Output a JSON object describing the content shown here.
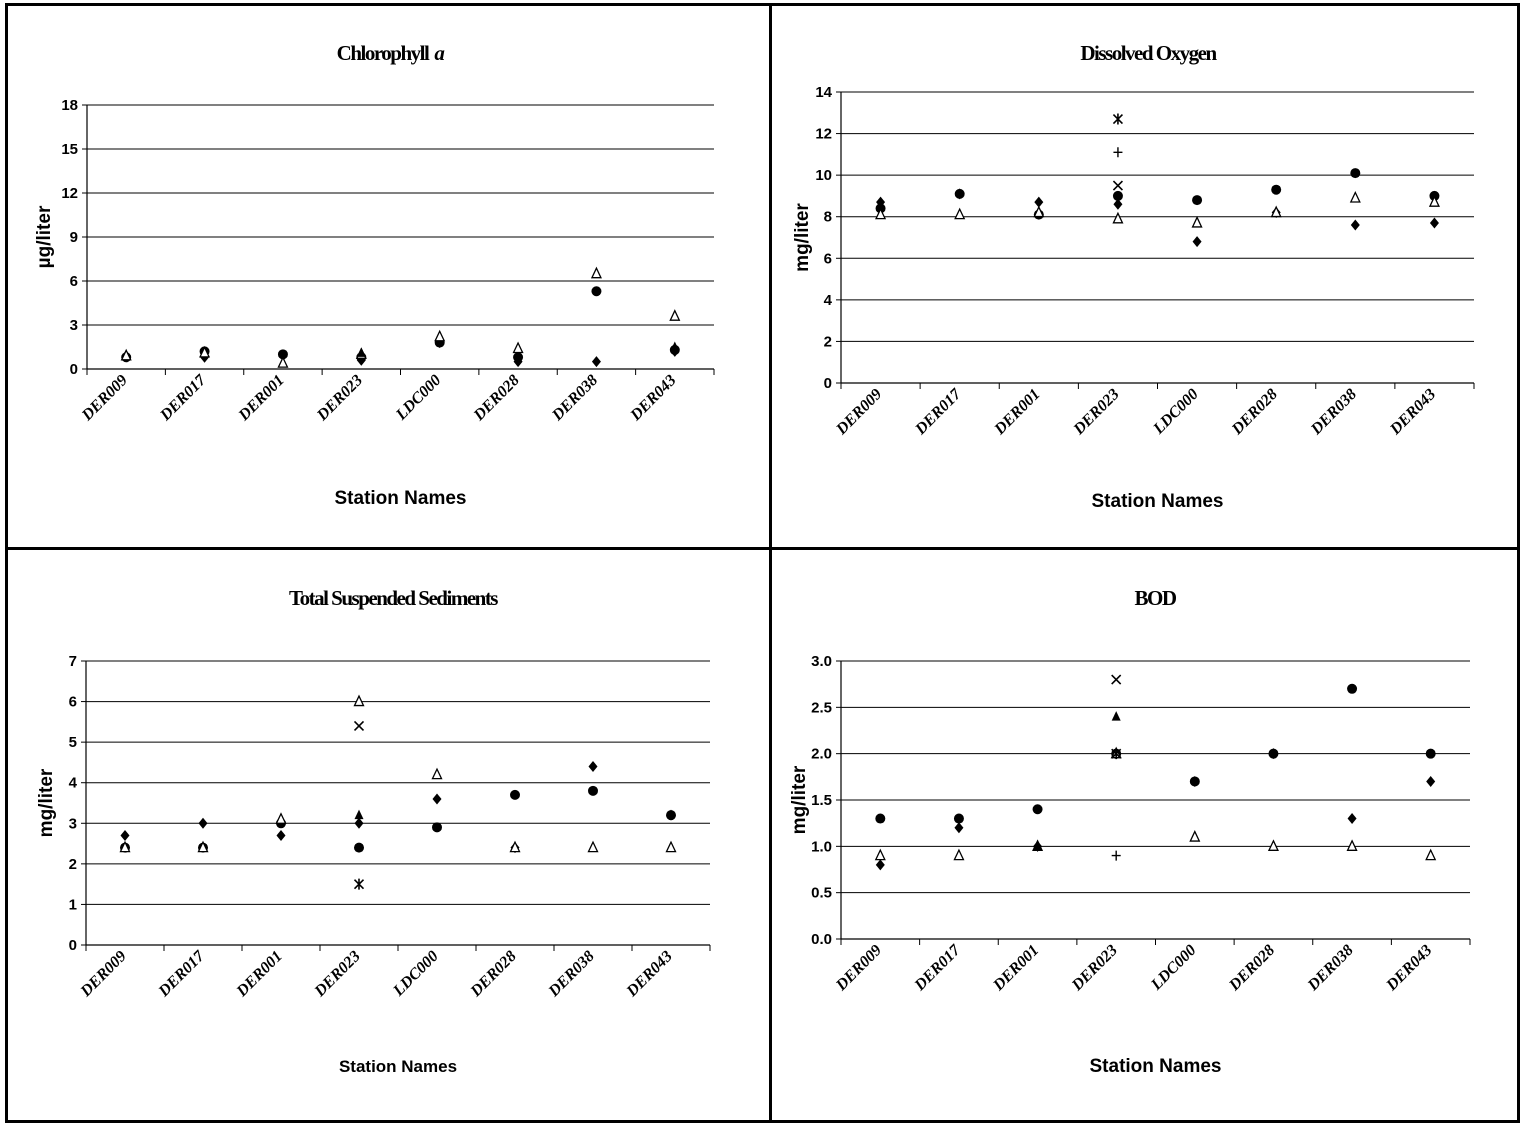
{
  "chart_data": [
    {
      "type": "scatter",
      "title": "Chlorophyll",
      "title_suffix": "a",
      "xlabel": "Station Names",
      "ylabel": "µg/liter",
      "categories": [
        "DER009",
        "DER017",
        "DER001",
        "DER023",
        "LDC000",
        "DER028",
        "DER038",
        "DER043"
      ],
      "ylim": [
        0,
        18
      ],
      "yticks": [
        "0",
        "3",
        "6",
        "9",
        "12",
        "15",
        "18"
      ],
      "ytick_values": [
        0,
        3,
        6,
        9,
        12,
        15,
        18
      ],
      "grid": true,
      "series": [
        {
          "marker": "diamond",
          "values": [
            0.9,
            0.8,
            0.9,
            0.6,
            1.8,
            0.5,
            0.5,
            1.2
          ]
        },
        {
          "marker": "circle",
          "values": [
            0.8,
            1.2,
            1.0,
            0.8,
            1.8,
            0.8,
            5.3,
            1.3
          ]
        },
        {
          "marker": "triangle",
          "values": [
            0.9,
            1.1,
            0.4,
            1.0,
            2.2,
            1.4,
            6.5,
            3.6
          ]
        },
        {
          "marker": "filled-triangle",
          "values": [
            null,
            null,
            null,
            1.1,
            null,
            null,
            null,
            1.5
          ]
        }
      ]
    },
    {
      "type": "scatter",
      "title": "Dissolved Oxygen",
      "xlabel": "Station Names",
      "ylabel": "mg/liter",
      "categories": [
        "DER009",
        "DER017",
        "DER001",
        "DER023",
        "LDC000",
        "DER028",
        "DER038",
        "DER043"
      ],
      "ylim": [
        0,
        14
      ],
      "yticks": [
        "0",
        "2",
        "4",
        "6",
        "8",
        "10",
        "12",
        "14"
      ],
      "ytick_values": [
        0,
        2,
        4,
        6,
        8,
        10,
        12,
        14
      ],
      "grid": true,
      "series": [
        {
          "marker": "diamond",
          "values": [
            8.7,
            9.1,
            8.7,
            8.6,
            6.8,
            8.2,
            7.6,
            7.7
          ]
        },
        {
          "marker": "circle",
          "values": [
            8.4,
            9.1,
            8.1,
            9.0,
            8.8,
            9.3,
            10.1,
            9.0
          ]
        },
        {
          "marker": "triangle",
          "values": [
            8.1,
            8.1,
            8.2,
            7.9,
            7.7,
            8.2,
            8.9,
            8.7
          ]
        },
        {
          "marker": "x",
          "values": [
            null,
            null,
            null,
            9.5,
            null,
            null,
            null,
            null
          ]
        },
        {
          "marker": "asterisk",
          "values": [
            null,
            null,
            null,
            12.7,
            null,
            null,
            null,
            null
          ]
        },
        {
          "marker": "plus",
          "values": [
            null,
            null,
            null,
            11.1,
            null,
            null,
            null,
            null
          ]
        }
      ]
    },
    {
      "type": "scatter",
      "title": "Total Suspended Sediments",
      "xlabel": "Station Names",
      "ylabel": "mg/liter",
      "categories": [
        "DER009",
        "DER017",
        "DER001",
        "DER023",
        "LDC000",
        "DER028",
        "DER038",
        "DER043"
      ],
      "ylim": [
        0,
        7
      ],
      "yticks": [
        "0",
        "1",
        "2",
        "3",
        "4",
        "5",
        "6",
        "7"
      ],
      "ytick_values": [
        0,
        1,
        2,
        3,
        4,
        5,
        6,
        7
      ],
      "grid": true,
      "series": [
        {
          "marker": "diamond",
          "values": [
            2.7,
            3.0,
            2.7,
            3.0,
            3.6,
            2.4,
            4.4,
            3.2
          ]
        },
        {
          "marker": "circle",
          "values": [
            2.4,
            2.4,
            3.0,
            2.4,
            2.9,
            3.7,
            3.8,
            3.2
          ]
        },
        {
          "marker": "triangle",
          "values": [
            2.4,
            2.4,
            3.1,
            6.0,
            4.2,
            2.4,
            2.4,
            2.4
          ]
        },
        {
          "marker": "filled-triangle",
          "values": [
            null,
            null,
            null,
            3.2,
            null,
            null,
            null,
            null
          ]
        },
        {
          "marker": "x",
          "values": [
            null,
            null,
            null,
            5.4,
            null,
            null,
            null,
            null
          ]
        },
        {
          "marker": "asterisk",
          "values": [
            null,
            null,
            null,
            1.5,
            null,
            null,
            null,
            null
          ]
        }
      ]
    },
    {
      "type": "scatter",
      "title": "BOD",
      "xlabel": "Station Names",
      "ylabel": "mg/liter",
      "categories": [
        "DER009",
        "DER017",
        "DER001",
        "DER023",
        "LDC000",
        "DER028",
        "DER038",
        "DER043"
      ],
      "ylim": [
        0,
        3
      ],
      "yticks": [
        "0.0",
        "0.5",
        "1.0",
        "1.5",
        "2.0",
        "2.5",
        "3.0"
      ],
      "ytick_values": [
        0,
        0.5,
        1.0,
        1.5,
        2.0,
        2.5,
        3.0
      ],
      "grid": true,
      "series": [
        {
          "marker": "diamond",
          "values": [
            0.8,
            1.2,
            1.0,
            2.0,
            1.7,
            2.0,
            1.3,
            1.7
          ]
        },
        {
          "marker": "circle",
          "values": [
            1.3,
            1.3,
            1.4,
            2.0,
            1.7,
            2.0,
            2.7,
            2.0
          ]
        },
        {
          "marker": "triangle",
          "values": [
            0.9,
            0.9,
            1.0,
            2.0,
            1.1,
            1.0,
            1.0,
            0.9
          ]
        },
        {
          "marker": "filled-triangle",
          "values": [
            null,
            null,
            1.0,
            2.4,
            null,
            null,
            null,
            null
          ]
        },
        {
          "marker": "x",
          "values": [
            null,
            null,
            null,
            2.8,
            null,
            null,
            null,
            null
          ]
        },
        {
          "marker": "asterisk",
          "values": [
            null,
            null,
            null,
            2.0,
            null,
            null,
            null,
            null
          ]
        },
        {
          "marker": "plus",
          "values": [
            null,
            null,
            null,
            0.9,
            null,
            null,
            null,
            null
          ]
        }
      ]
    }
  ]
}
